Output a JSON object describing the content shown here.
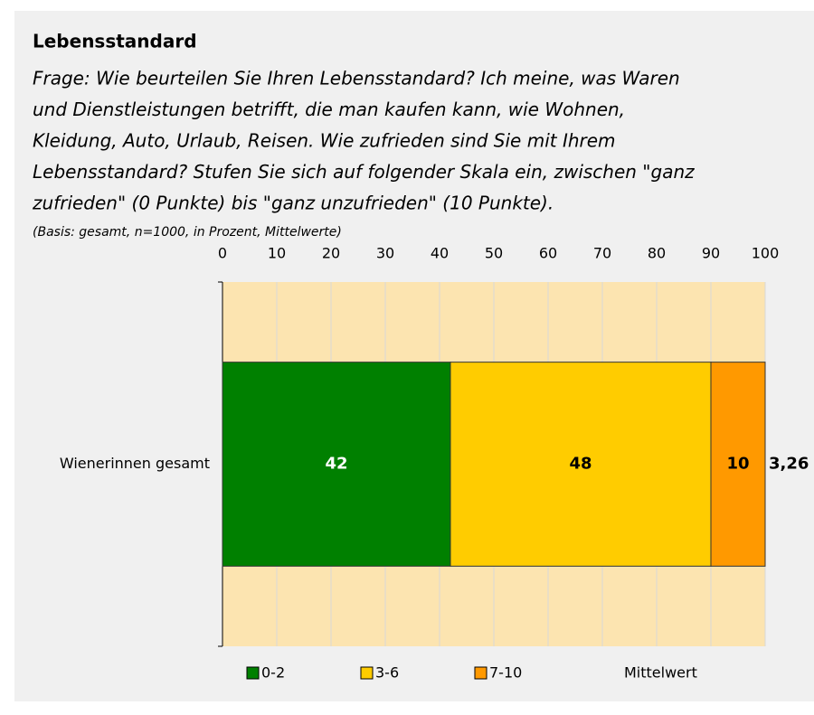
{
  "chart_data": {
    "type": "stacked_barh",
    "title": "Lebensstandard",
    "subtitle": [
      "Frage: Wie beurteilen Sie Ihren Lebensstandard? Ich meine, was Waren",
      "und Dienstleistungen betrifft, die man kaufen kann, wie Wohnen,",
      "Kleidung, Auto, Urlaub, Reisen. Wie zufrieden sind Sie mit Ihrem",
      "Lebensstandard? Stufen Sie sich auf folgender Skala ein, zwischen \"ganz",
      "zufrieden\" (0 Punkte) bis \"ganz unzufrieden\" (10 Punkte)."
    ],
    "note": "(Basis: gesamt, n=1000, in Prozent, Mittelwerte)",
    "categories": [
      "Wienerinnen gesamt"
    ],
    "series": [
      {
        "name": "0-2",
        "color": "#008000",
        "values": [
          42
        ]
      },
      {
        "name": "3-6",
        "color": "#ffcc00",
        "values": [
          48
        ]
      },
      {
        "name": "7-10",
        "color": "#ff9900",
        "values": [
          10
        ]
      }
    ],
    "mean": {
      "name": "Mittelwert",
      "values": [
        {
          "value": 3.26,
          "label": "3,26"
        }
      ]
    },
    "xlim": [
      0,
      100
    ],
    "xticks": [
      0,
      10,
      20,
      30,
      40,
      50,
      60,
      70,
      80,
      90,
      100
    ],
    "grid": true,
    "legend": "bottom"
  }
}
